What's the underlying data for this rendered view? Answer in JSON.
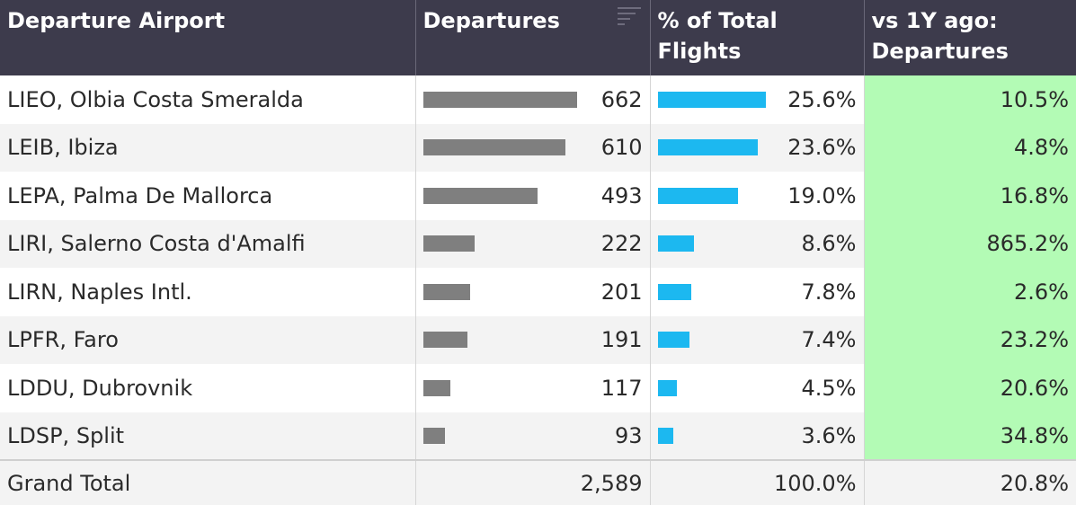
{
  "columns": {
    "airport": "Departure Airport",
    "departures": "Departures",
    "pct_total": "% of Total Flights",
    "vs_1y": "vs 1Y ago: Departures"
  },
  "sort_icon": "sort-descending-icon",
  "colors": {
    "header_bg": "#3d3b4c",
    "departure_bar": "#7f7f7f",
    "share_bar": "#1cb8f0",
    "positive_change_bg": "#b3fbb5"
  },
  "rows": [
    {
      "airport": "LIEO, Olbia Costa Smeralda",
      "departures": "662",
      "departures_value": 662,
      "pct_total": "25.6%",
      "pct_value": 25.6,
      "vs_1y": "10.5%"
    },
    {
      "airport": "LEIB, Ibiza",
      "departures": "610",
      "departures_value": 610,
      "pct_total": "23.6%",
      "pct_value": 23.6,
      "vs_1y": "4.8%"
    },
    {
      "airport": "LEPA, Palma De Mallorca",
      "departures": "493",
      "departures_value": 493,
      "pct_total": "19.0%",
      "pct_value": 19.0,
      "vs_1y": "16.8%"
    },
    {
      "airport": "LIRI, Salerno Costa d'Amalfi",
      "departures": "222",
      "departures_value": 222,
      "pct_total": "8.6%",
      "pct_value": 8.6,
      "vs_1y": "865.2%"
    },
    {
      "airport": "LIRN, Naples Intl.",
      "departures": "201",
      "departures_value": 201,
      "pct_total": "7.8%",
      "pct_value": 7.8,
      "vs_1y": "2.6%"
    },
    {
      "airport": "LPFR, Faro",
      "departures": "191",
      "departures_value": 191,
      "pct_total": "7.4%",
      "pct_value": 7.4,
      "vs_1y": "23.2%"
    },
    {
      "airport": "LDDU, Dubrovnik",
      "departures": "117",
      "departures_value": 117,
      "pct_total": "4.5%",
      "pct_value": 4.5,
      "vs_1y": "20.6%"
    },
    {
      "airport": "LDSP, Split",
      "departures": "93",
      "departures_value": 93,
      "pct_total": "3.6%",
      "pct_value": 3.6,
      "vs_1y": "34.8%"
    }
  ],
  "total": {
    "label": "Grand Total",
    "departures": "2,589",
    "pct_total": "100.0%",
    "vs_1y": "20.8%"
  }
}
